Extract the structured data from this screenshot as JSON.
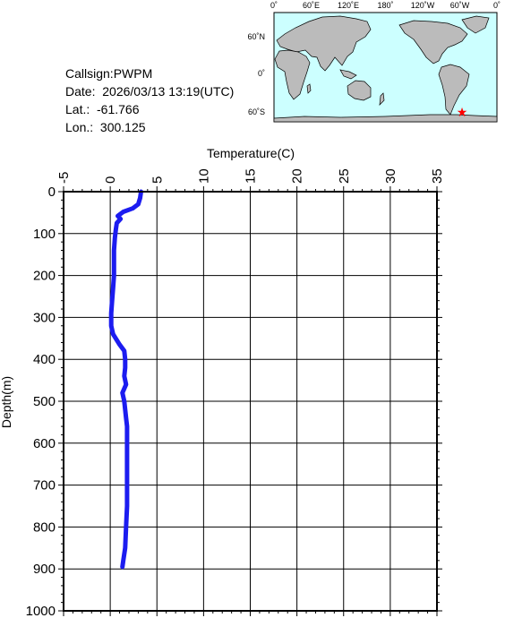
{
  "info": {
    "callsign": "Callsign:PWPM",
    "date": "Date:  2026/03/13 13:19(UTC)",
    "lat": "Lat.:  -61.766",
    "lon": "Lon.:  300.125"
  },
  "map": {
    "top_labels": [
      "0˚",
      "60˚E",
      "120˚E",
      "180˚",
      "120˚W",
      "60˚W",
      "0˚"
    ],
    "left_labels": [
      "60˚N",
      "0˚",
      "60˚S"
    ],
    "ocean_color": "#ccffff",
    "land_color": "#bbbbbb",
    "marker_color": "#ff0000",
    "marker": "star-icon"
  },
  "chart_data": {
    "type": "line",
    "xlabel": "Temperature(C)",
    "ylabel": "Depth(m)",
    "xlim": [
      -5,
      35
    ],
    "ylim": [
      0,
      1000
    ],
    "y_inverted": true,
    "x_ticks": [
      "-5",
      "0",
      "5",
      "10",
      "15",
      "20",
      "25",
      "30",
      "35"
    ],
    "y_ticks": [
      "0",
      "100",
      "200",
      "300",
      "400",
      "500",
      "600",
      "700",
      "800",
      "900",
      "1000"
    ],
    "grid": true,
    "line_color": "#1c1cf0",
    "series": [
      {
        "points": [
          [
            3.3,
            0
          ],
          [
            3.2,
            15
          ],
          [
            3.0,
            30
          ],
          [
            2.4,
            40
          ],
          [
            1.4,
            48
          ],
          [
            0.8,
            58
          ],
          [
            1.1,
            65
          ],
          [
            0.7,
            75
          ],
          [
            0.6,
            90
          ],
          [
            0.5,
            110
          ],
          [
            0.4,
            140
          ],
          [
            0.4,
            170
          ],
          [
            0.4,
            200
          ],
          [
            0.3,
            230
          ],
          [
            0.2,
            260
          ],
          [
            0.1,
            290
          ],
          [
            0.1,
            320
          ],
          [
            0.3,
            340
          ],
          [
            1.0,
            365
          ],
          [
            1.5,
            380
          ],
          [
            1.6,
            400
          ],
          [
            1.6,
            420
          ],
          [
            1.5,
            440
          ],
          [
            1.7,
            460
          ],
          [
            1.3,
            480
          ],
          [
            1.5,
            500
          ],
          [
            1.6,
            520
          ],
          [
            1.7,
            540
          ],
          [
            1.8,
            560
          ],
          [
            1.8,
            580
          ],
          [
            1.8,
            600
          ],
          [
            1.8,
            650
          ],
          [
            1.8,
            700
          ],
          [
            1.8,
            750
          ],
          [
            1.7,
            800
          ],
          [
            1.6,
            850
          ],
          [
            1.4,
            880
          ],
          [
            1.3,
            895
          ]
        ]
      }
    ]
  }
}
